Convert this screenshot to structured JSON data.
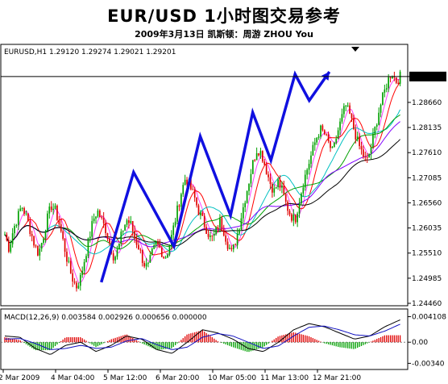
{
  "header": {
    "title": "EUR/USD  1小时图交易参考",
    "subtitle": "2009年3月13日    凯斯顿：周游 ZHOU You"
  },
  "colors": {
    "bull_candle": "#00a000",
    "bear_candle": "#e00000",
    "zigzag": "#1010e0",
    "ma_colors": [
      "#ff40ff",
      "#ff0000",
      "#00c0c0",
      "#00a000",
      "#8000ff",
      "#000000"
    ],
    "macd_line": "#000000",
    "signal_line": "#1010c0",
    "hist_up": "#e00000",
    "hist_down": "#00a000"
  },
  "chart_data": [
    {
      "type": "candlestick",
      "symbol_info": "EURUSD,H1  1.29120 1.29274 1.29021 1.29201",
      "current_price_label": "1.29201",
      "current_price": 1.29201,
      "y_tick_labels": [
        "1.29201",
        "1.28660",
        "1.28135",
        "1.27610",
        "1.27085",
        "1.26560",
        "1.26035",
        "1.25510",
        "1.24985",
        "1.24460"
      ],
      "ylim": [
        1.2446,
        1.2962
      ],
      "x_tick_labels": [
        "2 Mar 2009",
        "4 Mar 04:00",
        "5 Mar 12:00",
        "6 Mar 20:00",
        "10 Mar 05:00",
        "11 Mar 13:00",
        "12 Mar 21:00"
      ],
      "price_path_note": "",
      "price_path": [
        1.259,
        1.256,
        1.26,
        1.2625,
        1.265,
        1.263,
        1.26,
        1.257,
        1.255,
        1.258,
        1.262,
        1.265,
        1.264,
        1.261,
        1.257,
        1.253,
        1.25,
        1.248,
        1.25,
        1.254,
        1.258,
        1.262,
        1.264,
        1.262,
        1.26,
        1.257,
        1.254,
        1.256,
        1.26,
        1.262,
        1.261,
        1.258,
        1.256,
        1.253,
        1.252,
        1.255,
        1.257,
        1.256,
        1.254,
        1.256,
        1.26,
        1.264,
        1.268,
        1.271,
        1.269,
        1.267,
        1.264,
        1.262,
        1.26,
        1.258,
        1.259,
        1.262,
        1.26,
        1.257,
        1.255,
        1.258,
        1.262,
        1.266,
        1.27,
        1.274,
        1.277,
        1.276,
        1.273,
        1.27,
        1.268,
        1.27,
        1.268,
        1.265,
        1.263,
        1.262,
        1.266,
        1.27,
        1.273,
        1.276,
        1.279,
        1.281,
        1.28,
        1.278,
        1.276,
        1.28,
        1.283,
        1.286,
        1.284,
        1.281,
        1.278,
        1.276,
        1.274,
        1.277,
        1.281,
        1.285,
        1.288,
        1.291,
        1.293,
        1.291,
        1.292
      ],
      "zigzag": {
        "description": "",
        "points": [
          [
            0.245,
            1.249
          ],
          [
            0.325,
            1.272
          ],
          [
            0.425,
            1.2565
          ],
          [
            0.49,
            1.2795
          ],
          [
            0.565,
            1.263
          ],
          [
            0.62,
            1.2845
          ],
          [
            0.665,
            1.2745
          ],
          [
            0.725,
            1.2925
          ],
          [
            0.76,
            1.287
          ],
          [
            0.81,
            1.293
          ]
        ]
      }
    },
    {
      "type": "line",
      "title": "MACD(12,26,9)",
      "info": "MACD(12,26,9) 0.003584 0.002926 0.000656 0.000000",
      "y_tick_labels": [
        "0.004108",
        "0.00",
        "-0.00340"
      ],
      "ylim": [
        -0.004,
        0.0047
      ],
      "series": [
        {
          "name": "MACD",
          "values": [
            0.001,
            0.0008,
            -0.001,
            -0.002,
            -0.0005,
            0.0,
            -0.0015,
            -0.0005,
            0.001,
            0.0005,
            -0.0012,
            -0.0018,
            0.0,
            0.002,
            0.0015,
            0.0005,
            -0.001,
            -0.0015,
            0.0,
            0.002,
            0.003,
            0.0025,
            0.0015,
            0.0005,
            0.001,
            0.0025,
            0.0036
          ]
        },
        {
          "name": "Signal",
          "values": [
            0.0005,
            0.0006,
            -0.0002,
            -0.0012,
            -0.001,
            -0.0005,
            -0.001,
            -0.0008,
            0.0002,
            0.0006,
            -0.0004,
            -0.0012,
            -0.0008,
            0.0008,
            0.0014,
            0.001,
            0.0,
            -0.001,
            -0.0006,
            0.001,
            0.0024,
            0.0026,
            0.002,
            0.0012,
            0.001,
            0.0018,
            0.0029
          ]
        }
      ]
    }
  ]
}
